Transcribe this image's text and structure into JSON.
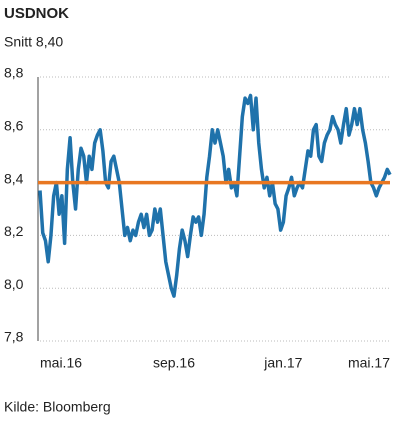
{
  "chart_data": {
    "type": "line",
    "title": "USDNOK",
    "subtitle": "Snitt 8,40",
    "source": "Kilde: Bloomberg",
    "series": [
      {
        "name": "USDNOK",
        "color": "#1f72ab",
        "values": [
          8.37,
          8.21,
          8.18,
          8.1,
          8.2,
          8.35,
          8.4,
          8.28,
          8.35,
          8.17,
          8.45,
          8.57,
          8.4,
          8.3,
          8.45,
          8.53,
          8.5,
          8.4,
          8.5,
          8.45,
          8.55,
          8.58,
          8.6,
          8.52,
          8.4,
          8.38,
          8.48,
          8.5,
          8.45,
          8.4,
          8.3,
          8.2,
          8.23,
          8.18,
          8.22,
          8.2,
          8.25,
          8.28,
          8.23,
          8.28,
          8.2,
          8.22,
          8.3,
          8.25,
          8.3,
          8.2,
          8.1,
          8.05,
          8.0,
          7.97,
          8.05,
          8.15,
          8.22,
          8.18,
          8.12,
          8.2,
          8.27,
          8.25,
          8.27,
          8.2,
          8.28,
          8.42,
          8.5,
          8.6,
          8.55,
          8.6,
          8.55,
          8.5,
          8.4,
          8.45,
          8.38,
          8.4,
          8.35,
          8.5,
          8.65,
          8.72,
          8.7,
          8.73,
          8.6,
          8.72,
          8.55,
          8.45,
          8.38,
          8.42,
          8.35,
          8.4,
          8.32,
          8.3,
          8.22,
          8.25,
          8.35,
          8.38,
          8.42,
          8.35,
          8.38,
          8.4,
          8.38,
          8.45,
          8.52,
          8.5,
          8.6,
          8.62,
          8.5,
          8.48,
          8.55,
          8.58,
          8.6,
          8.65,
          8.62,
          8.6,
          8.55,
          8.62,
          8.68,
          8.58,
          8.62,
          8.68,
          8.62,
          8.68,
          8.6,
          8.55,
          8.48,
          8.4,
          8.38,
          8.35,
          8.38,
          8.4,
          8.42,
          8.45,
          8.43
        ]
      }
    ],
    "average_line": {
      "value": 8.4,
      "color": "#e87722"
    },
    "xlim": [
      0,
      128
    ],
    "xticks": [
      {
        "value": 0,
        "label": "mai.16"
      },
      {
        "value": 49,
        "label": "sep.16"
      },
      {
        "value": 89,
        "label": "jan.17"
      },
      {
        "value": 128,
        "label": "mai.17"
      }
    ],
    "ylim": [
      7.8,
      8.8
    ],
    "yticks": [
      {
        "value": 7.8,
        "label": "7,8"
      },
      {
        "value": 8.0,
        "label": "8,0"
      },
      {
        "value": 8.2,
        "label": "8,2"
      },
      {
        "value": 8.4,
        "label": "8,4"
      },
      {
        "value": 8.6,
        "label": "8,6"
      },
      {
        "value": 8.8,
        "label": "8,8"
      }
    ],
    "grid": true
  }
}
